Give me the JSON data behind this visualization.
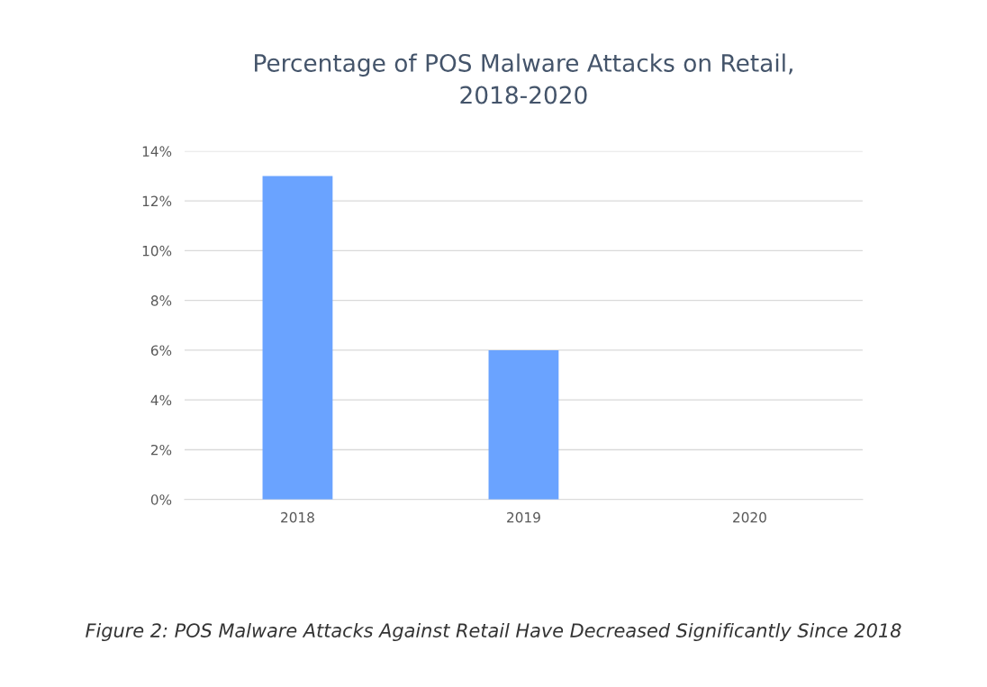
{
  "chart_data": {
    "type": "bar",
    "title": "Percentage of POS Malware Attacks on Retail,\n2018-2020",
    "categories": [
      "2018",
      "2019",
      "2020"
    ],
    "values": [
      13,
      6,
      0
    ],
    "color": "#6aa3ff",
    "ylim": [
      0,
      14
    ],
    "yticks": [
      {
        "value": 0,
        "label": "0%"
      },
      {
        "value": 2,
        "label": "2%"
      },
      {
        "value": 4,
        "label": "4%"
      },
      {
        "value": 6,
        "label": "6%"
      },
      {
        "value": 8,
        "label": "8%"
      },
      {
        "value": 10,
        "label": "10%"
      },
      {
        "value": 12,
        "label": "12%"
      },
      {
        "value": 14,
        "label": "14%"
      }
    ],
    "grid": "y",
    "annotations": [
      "Figure 2: POS Malware Attacks Against Retail Have Decreased Significantly Since 2018"
    ]
  }
}
